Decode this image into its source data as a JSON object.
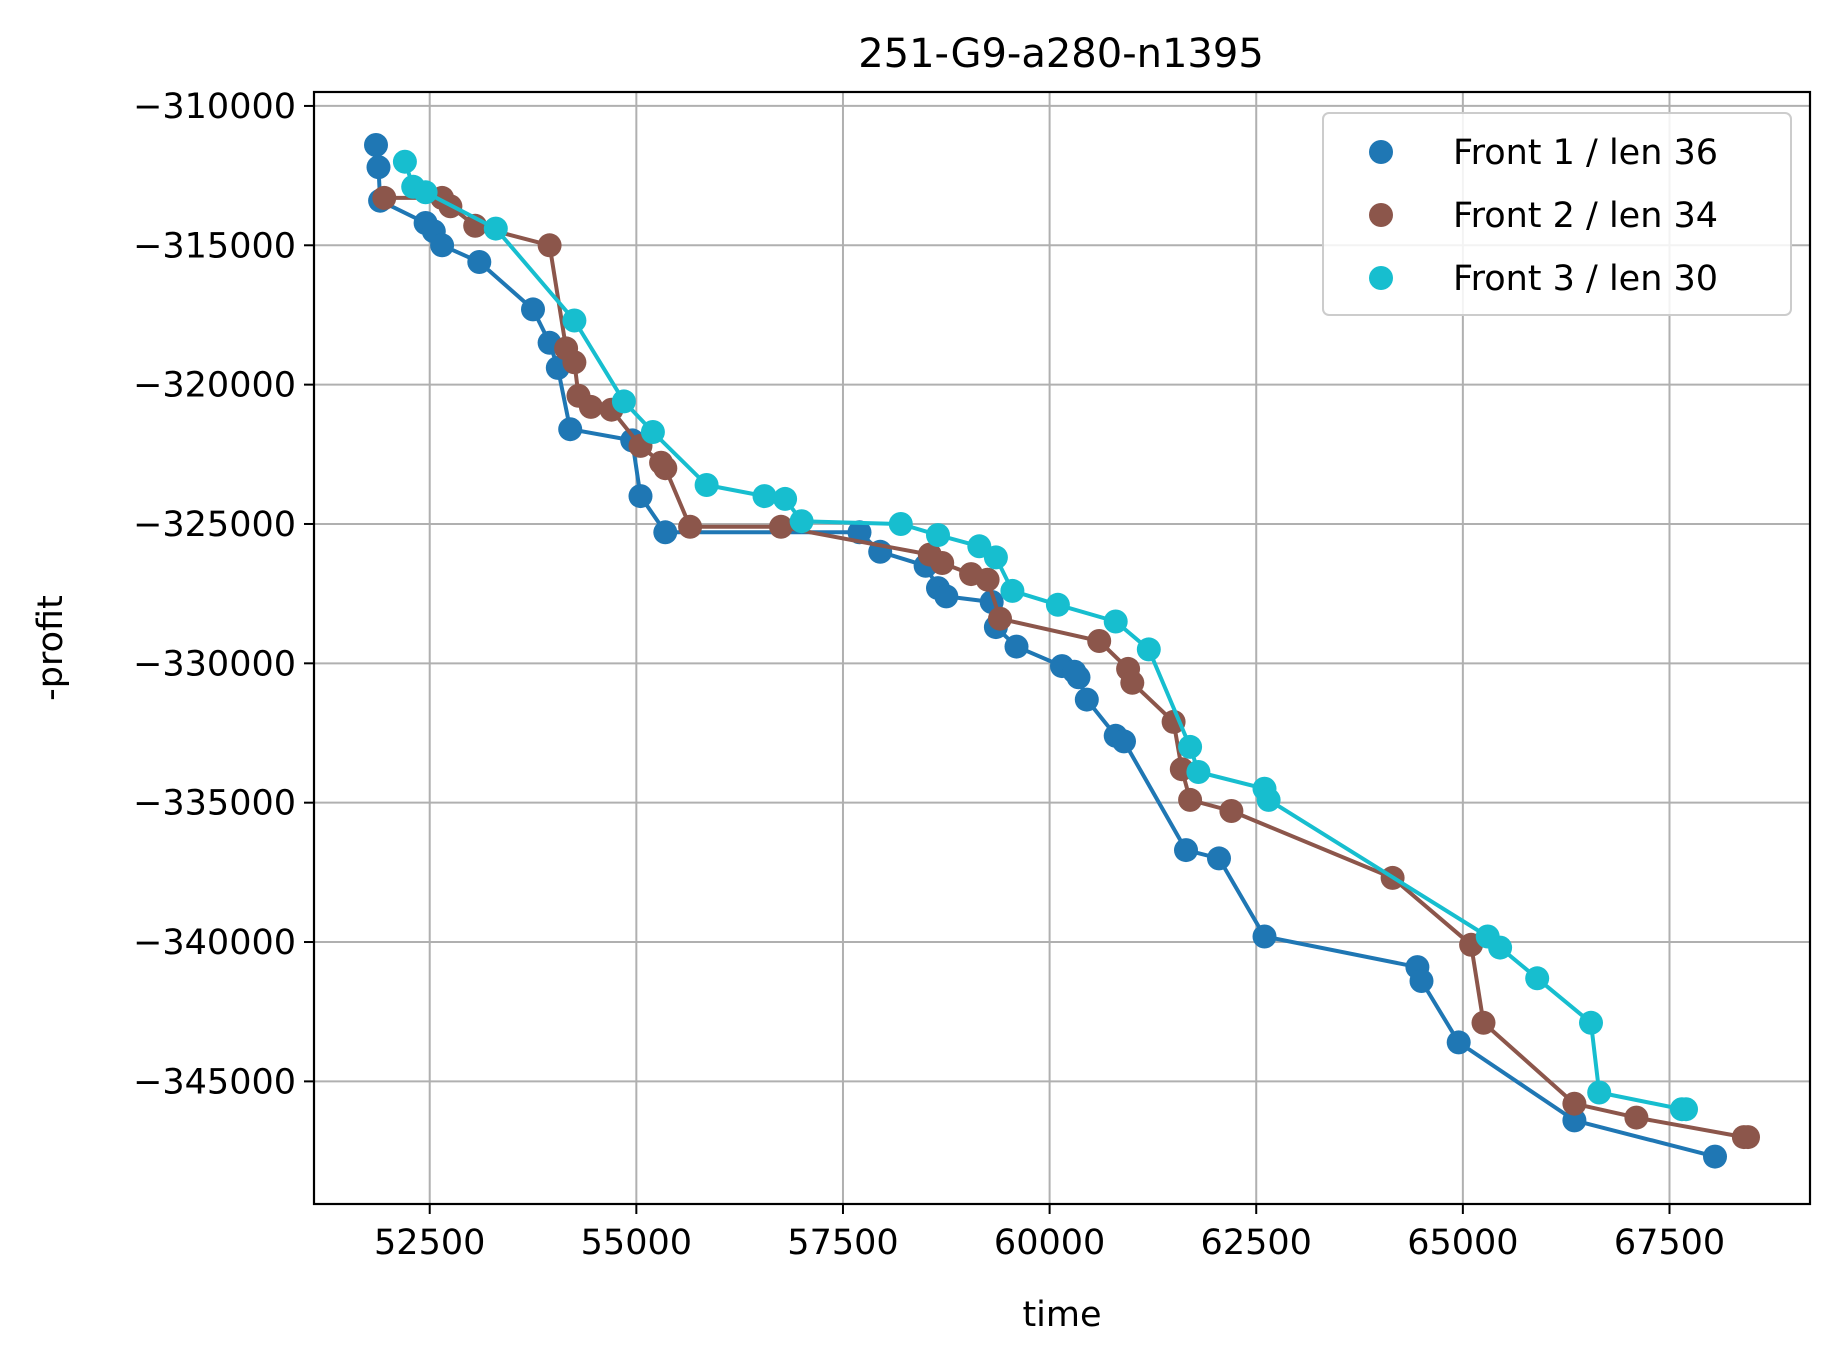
{
  "chart_data": {
    "type": "scatter",
    "title": "251-G9-a280-n1395",
    "xlabel": "time",
    "ylabel": "-profit",
    "xlim": [
      51100,
      69200
    ],
    "ylim": [
      -349400,
      -309500
    ],
    "xticks": [
      52500,
      55000,
      57500,
      60000,
      62500,
      65000,
      67500
    ],
    "xtick_labels": [
      "52500",
      "55000",
      "57500",
      "60000",
      "62500",
      "65000",
      "67500"
    ],
    "yticks": [
      -310000,
      -315000,
      -320000,
      -325000,
      -330000,
      -335000,
      -340000,
      -345000
    ],
    "ytick_labels": [
      "−310000",
      "−315000",
      "−320000",
      "−325000",
      "−330000",
      "−335000",
      "−340000",
      "−345000"
    ],
    "grid": true,
    "legend_position": "top-right",
    "connected_lines": true,
    "series": [
      {
        "name": "Front 1 / len 36",
        "color": "#1f77b4",
        "points": [
          [
            51850,
            -311400
          ],
          [
            51880,
            -312200
          ],
          [
            51900,
            -313400
          ],
          [
            52450,
            -314200
          ],
          [
            52550,
            -314500
          ],
          [
            52650,
            -315000
          ],
          [
            53100,
            -315600
          ],
          [
            53750,
            -317300
          ],
          [
            53950,
            -318500
          ],
          [
            54050,
            -319400
          ],
          [
            54200,
            -321600
          ],
          [
            54950,
            -322000
          ],
          [
            55050,
            -324000
          ],
          [
            55350,
            -325300
          ],
          [
            57700,
            -325300
          ],
          [
            57950,
            -326000
          ],
          [
            58500,
            -326500
          ],
          [
            58650,
            -327300
          ],
          [
            58750,
            -327600
          ],
          [
            59300,
            -327800
          ],
          [
            59350,
            -328700
          ],
          [
            59600,
            -329400
          ],
          [
            60150,
            -330100
          ],
          [
            60300,
            -330300
          ],
          [
            60350,
            -330500
          ],
          [
            60450,
            -331300
          ],
          [
            60800,
            -332600
          ],
          [
            60900,
            -332800
          ],
          [
            61650,
            -336700
          ],
          [
            62050,
            -337000
          ],
          [
            62600,
            -339800
          ],
          [
            64450,
            -340900
          ],
          [
            64500,
            -341400
          ],
          [
            64950,
            -343600
          ],
          [
            66350,
            -346400
          ],
          [
            68050,
            -347700
          ]
        ]
      },
      {
        "name": "Front 2 / len 34",
        "color": "#8c564b",
        "points": [
          [
            51950,
            -313300
          ],
          [
            52650,
            -313300
          ],
          [
            52750,
            -313600
          ],
          [
            53050,
            -314300
          ],
          [
            53950,
            -315000
          ],
          [
            54150,
            -318700
          ],
          [
            54250,
            -319200
          ],
          [
            54300,
            -320400
          ],
          [
            54450,
            -320800
          ],
          [
            54700,
            -320900
          ],
          [
            55050,
            -322200
          ],
          [
            55300,
            -322800
          ],
          [
            55350,
            -323000
          ],
          [
            55650,
            -325100
          ],
          [
            56750,
            -325100
          ],
          [
            58550,
            -326100
          ],
          [
            58700,
            -326400
          ],
          [
            59050,
            -326800
          ],
          [
            59250,
            -327000
          ],
          [
            59400,
            -328400
          ],
          [
            60600,
            -329200
          ],
          [
            60950,
            -330200
          ],
          [
            61000,
            -330700
          ],
          [
            61500,
            -332100
          ],
          [
            61600,
            -333800
          ],
          [
            61700,
            -334900
          ],
          [
            62200,
            -335300
          ],
          [
            64150,
            -337700
          ],
          [
            65100,
            -340100
          ],
          [
            65250,
            -342900
          ],
          [
            66350,
            -345800
          ],
          [
            67100,
            -346300
          ],
          [
            68400,
            -347000
          ],
          [
            68450,
            -347000
          ]
        ]
      },
      {
        "name": "Front 3 / len 30",
        "color": "#17becf",
        "points": [
          [
            52200,
            -312000
          ],
          [
            52300,
            -312900
          ],
          [
            52450,
            -313100
          ],
          [
            53300,
            -314400
          ],
          [
            54250,
            -317700
          ],
          [
            54850,
            -320600
          ],
          [
            55200,
            -321700
          ],
          [
            55850,
            -323600
          ],
          [
            56550,
            -324000
          ],
          [
            56800,
            -324100
          ],
          [
            57000,
            -324900
          ],
          [
            58200,
            -325000
          ],
          [
            58650,
            -325400
          ],
          [
            59150,
            -325800
          ],
          [
            59350,
            -326200
          ],
          [
            59550,
            -327400
          ],
          [
            60100,
            -327900
          ],
          [
            60800,
            -328500
          ],
          [
            61200,
            -329500
          ],
          [
            61700,
            -333000
          ],
          [
            61800,
            -333900
          ],
          [
            62600,
            -334500
          ],
          [
            62650,
            -334900
          ],
          [
            65300,
            -339800
          ],
          [
            65450,
            -340200
          ],
          [
            65900,
            -341300
          ],
          [
            66550,
            -342900
          ],
          [
            66650,
            -345400
          ],
          [
            67650,
            -346000
          ],
          [
            67700,
            -346000
          ]
        ]
      }
    ]
  }
}
